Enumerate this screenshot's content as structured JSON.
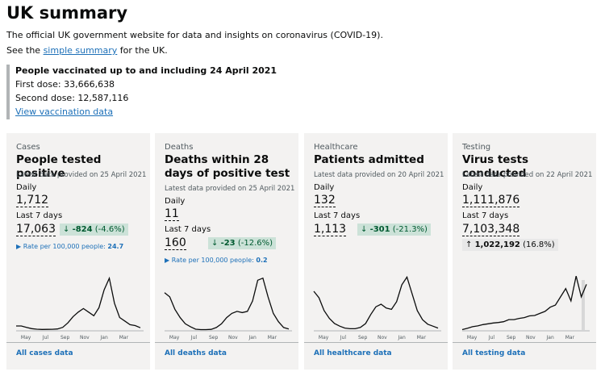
{
  "header": {
    "title": "UK summary",
    "description": "The official UK government website for data and insights on coronavirus (COVID-19).",
    "see_prefix": "See the",
    "see_link": "simple summary",
    "see_suffix": "for the UK."
  },
  "vaccination": {
    "heading": "People vaccinated up to and including 24 April 2021",
    "first_dose_label": "First dose:",
    "first_dose": "33,666,638",
    "second_dose_label": "Second dose:",
    "second_dose": "12,587,116",
    "link": "View vaccination data"
  },
  "months": [
    "May",
    "Jul",
    "Sep",
    "Nov",
    "Jan",
    "Mar"
  ],
  "cards": [
    {
      "caption": "Cases",
      "title": "People tested positive",
      "updated": "Latest data provided on 25 April 2021",
      "daily_label": "Daily",
      "daily": "1,712",
      "week_label": "Last 7 days",
      "week": "17,063",
      "change": "-824",
      "change_pct": "(-4.6%)",
      "direction": "down",
      "rate_label": "Rate per 100,000 people:",
      "rate": "24.7",
      "trend": [
        4500,
        4500,
        3000,
        1500,
        900,
        600,
        700,
        800,
        1200,
        3000,
        8000,
        15000,
        20000,
        24000,
        20000,
        16000,
        25000,
        45000,
        58000,
        30000,
        14000,
        10000,
        6000,
        5000,
        2500
      ],
      "trend_ylim": [
        0,
        65000
      ],
      "link": "All cases data"
    },
    {
      "caption": "Deaths",
      "title": "Deaths within 28 days of positive test",
      "updated": "Latest data provided on 25 April 2021",
      "daily_label": "Daily",
      "daily": "11",
      "week_label": "Last 7 days",
      "week": "160",
      "change": "-23",
      "change_pct": "(-12.6%)",
      "direction": "down",
      "rate_label": "Rate per 100,000 people:",
      "rate": "0.2",
      "trend": [
        900,
        800,
        500,
        300,
        150,
        80,
        20,
        10,
        10,
        15,
        60,
        150,
        300,
        400,
        450,
        420,
        450,
        700,
        1200,
        1250,
        800,
        400,
        200,
        60,
        25
      ],
      "trend_ylim": [
        0,
        1400
      ],
      "link": "All deaths data"
    },
    {
      "caption": "Healthcare",
      "title": "Patients admitted",
      "updated": "Latest data provided on 20 April 2021",
      "daily_label": "Daily",
      "daily": "132",
      "week_label": "Last 7 days",
      "week": "1,113",
      "change": "-301",
      "change_pct": "(-21.3%)",
      "direction": "down",
      "trend": [
        3000,
        2500,
        1500,
        900,
        500,
        300,
        150,
        100,
        100,
        200,
        500,
        1200,
        1800,
        2000,
        1700,
        1600,
        2200,
        3500,
        4100,
        2800,
        1500,
        800,
        450,
        300,
        150
      ],
      "trend_ylim": [
        0,
        4500
      ],
      "link": "All healthcare data"
    },
    {
      "caption": "Testing",
      "title": "Virus tests conducted",
      "updated": "Latest data provided on 22 April 2021",
      "daily_label": "Daily",
      "daily": "1,111,876",
      "week_label": "Last 7 days",
      "week": "7,103,348",
      "change": "1,022,192",
      "change_pct": "(16.8%)",
      "direction": "up",
      "trend": [
        10000,
        40000,
        80000,
        100000,
        130000,
        150000,
        170000,
        180000,
        200000,
        250000,
        250000,
        280000,
        300000,
        340000,
        350000,
        400000,
        450000,
        550000,
        600000,
        800000,
        1000000,
        700000,
        1300000,
        800000,
        1100000
      ],
      "trend_ylim": [
        0,
        1400000
      ],
      "link": "All testing data"
    }
  ]
}
